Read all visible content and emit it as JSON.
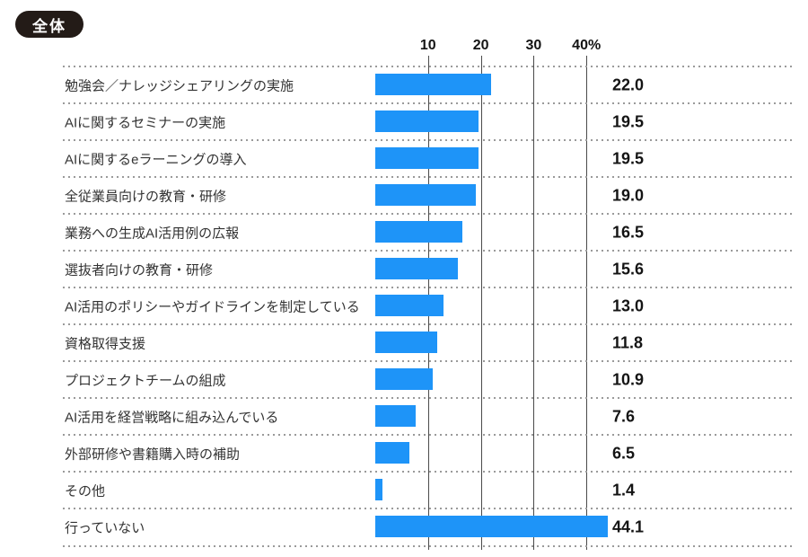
{
  "badge": {
    "label": "全体"
  },
  "colors": {
    "bar": "#1E94F8",
    "badge_bg": "#231B17",
    "grid_line": "#4A4A4A",
    "dot_line": "#9A9A9A",
    "label_text": "#333333",
    "value_text": "#141414"
  },
  "axis": {
    "tick_labels": [
      "10",
      "20",
      "30",
      "40%"
    ],
    "tick_values": [
      10,
      20,
      30,
      40
    ],
    "unit": "%"
  },
  "chart_data": {
    "type": "bar",
    "orientation": "horizontal",
    "title": "全体",
    "categories": [
      "勉強会／ナレッジシェアリングの実施",
      "AIに関するセミナーの実施",
      "AIに関するeラーニングの導入",
      "全従業員向けの教育・研修",
      "業務への生成AI活用例の広報",
      "選抜者向けの教育・研修",
      "AI活用のポリシーやガイドラインを制定している",
      "資格取得支援",
      "プロジェクトチームの組成",
      "AI活用を経営戦略に組み込んでいる",
      "外部研修や書籍購入時の補助",
      "その他",
      "行っていない"
    ],
    "values": [
      22.0,
      19.5,
      19.5,
      19.0,
      16.5,
      15.6,
      13.0,
      11.8,
      10.9,
      7.6,
      6.5,
      1.4,
      44.1
    ],
    "value_labels": [
      "22.0",
      "19.5",
      "19.5",
      "19.0",
      "16.5",
      "15.6",
      "13.0",
      "11.8",
      "10.9",
      "7.6",
      "6.5",
      "1.4",
      "44.1"
    ],
    "xlim": [
      0,
      45
    ],
    "xticks": [
      10,
      20,
      30,
      40
    ],
    "xlabel": "",
    "ylabel": "",
    "legend": "none",
    "grid": "vertical-solid-lines, horizontal-dotted-row-separators",
    "bar_color": "#1E94F8"
  }
}
